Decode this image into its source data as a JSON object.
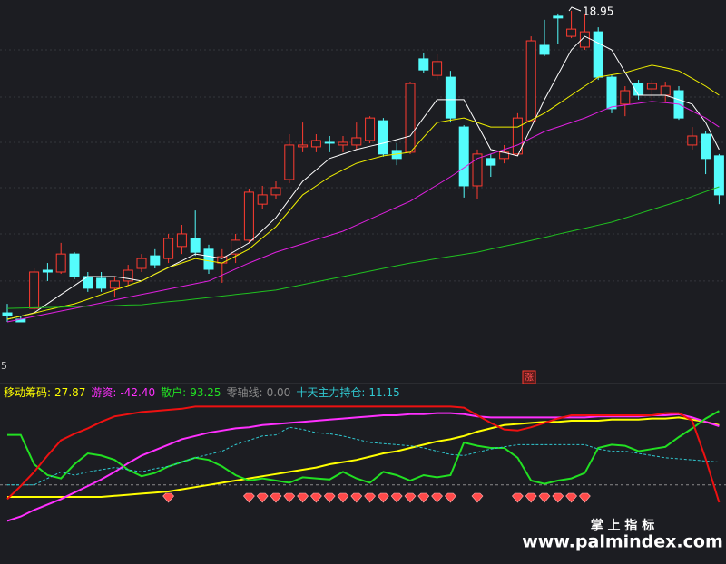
{
  "chart_data": [
    {
      "type": "candlestick",
      "open": [
        8.89,
        8.68,
        9.04,
        10.31,
        10.25,
        10.85,
        10.1,
        10.04,
        9.71,
        9.95,
        10.37,
        10.79,
        10.7,
        11.1,
        11.37,
        11.01,
        10.55,
        10.85,
        11.31,
        12.51,
        12.82,
        13.33,
        14.42,
        14.42,
        14.57,
        14.48,
        14.48,
        14.63,
        15.29,
        14.3,
        14.24,
        17.35,
        16.8,
        16.74,
        15.08,
        13.12,
        14.03,
        14.03,
        14.18,
        15.29,
        17.8,
        18.77,
        18.1,
        17.74,
        18.25,
        16.74,
        15.84,
        16.53,
        16.35,
        16.14,
        16.29,
        14.48,
        14.84,
        14.12
      ],
      "high": [
        9.19,
        8.8,
        10.37,
        10.55,
        11.22,
        10.91,
        10.25,
        10.25,
        10.1,
        10.49,
        10.85,
        11.01,
        11.52,
        11.82,
        12.3,
        11.16,
        11.01,
        11.52,
        13.03,
        13.12,
        13.27,
        14.84,
        15.23,
        14.84,
        14.78,
        14.78,
        15.23,
        15.44,
        15.38,
        14.54,
        16.59,
        17.56,
        17.5,
        16.95,
        15.14,
        14.33,
        14.18,
        14.48,
        15.54,
        18.1,
        18.65,
        18.86,
        18.95,
        18.86,
        18.4,
        16.8,
        16.44,
        16.65,
        16.65,
        16.59,
        16.44,
        15.08,
        14.93,
        14.18
      ],
      "low": [
        8.59,
        8.59,
        8.89,
        9.95,
        10.19,
        10.01,
        9.59,
        9.59,
        9.4,
        9.8,
        10.25,
        10.37,
        10.55,
        10.85,
        10.79,
        10.19,
        9.89,
        10.55,
        11.22,
        12.36,
        12.67,
        13.21,
        14.24,
        14.24,
        14.24,
        14.24,
        14.33,
        14.54,
        14.09,
        13.81,
        14.18,
        16.89,
        16.65,
        15.23,
        12.73,
        12.67,
        13.42,
        13.87,
        14.12,
        15.29,
        17.44,
        17.86,
        18.04,
        17.65,
        16.65,
        15.54,
        15.44,
        15.99,
        15.99,
        15.93,
        15.32,
        14.33,
        13.51,
        12.51
      ],
      "close": [
        8.8,
        8.59,
        10.25,
        10.25,
        10.85,
        10.1,
        9.71,
        9.71,
        9.95,
        10.31,
        10.7,
        10.49,
        11.37,
        11.52,
        10.91,
        10.34,
        10.76,
        11.31,
        12.91,
        12.82,
        13.06,
        14.48,
        14.48,
        14.63,
        14.54,
        14.57,
        14.72,
        15.38,
        14.18,
        14.03,
        16.53,
        16.98,
        17.26,
        15.38,
        13.12,
        14.18,
        13.81,
        14.24,
        15.38,
        17.95,
        17.5,
        18.71,
        18.34,
        18.25,
        16.74,
        15.69,
        16.29,
        16.14,
        16.53,
        16.44,
        15.38,
        14.78,
        14.03,
        12.82
      ],
      "up_color": "#ff3b30",
      "down_color": "#54fcfc",
      "ylim": [
        7.23,
        19.31
      ],
      "ygrid": [
        17.65,
        16.08,
        14.57,
        13.06,
        11.52,
        9.95
      ],
      "series": [
        {
          "color": "#ffffff",
          "values": [
            8.68,
            8.78,
            8.89,
            9.2,
            9.5,
            9.8,
            10.1,
            10.1,
            10.1,
            10.03,
            9.95,
            10.18,
            10.4,
            10.62,
            10.85,
            10.78,
            10.7,
            10.96,
            11.22,
            11.64,
            12.06,
            12.67,
            13.27,
            13.65,
            14.03,
            14.18,
            14.33,
            14.44,
            14.54,
            14.66,
            14.78,
            15.39,
            15.99,
            15.99,
            15.99,
            15.16,
            14.33,
            14.23,
            14.12,
            15.06,
            15.99,
            16.82,
            17.65,
            18.1,
            17.88,
            17.65,
            16.9,
            16.14,
            16.14,
            16.14,
            15.99,
            15.84,
            15.23,
            14.33
          ]
        },
        {
          "color": "#f0f000",
          "values": [
            8.68,
            8.78,
            8.88,
            8.99,
            9.09,
            9.19,
            9.34,
            9.5,
            9.65,
            9.8,
            9.95,
            10.18,
            10.4,
            10.55,
            10.7,
            10.62,
            10.55,
            10.78,
            11.01,
            11.39,
            11.76,
            12.29,
            12.82,
            13.12,
            13.42,
            13.65,
            13.87,
            14.0,
            14.12,
            14.18,
            14.24,
            14.74,
            15.23,
            15.31,
            15.38,
            15.23,
            15.08,
            15.08,
            15.08,
            15.31,
            15.54,
            15.84,
            16.14,
            16.44,
            16.74,
            16.82,
            16.89,
            17.02,
            17.14,
            17.05,
            16.95,
            16.7,
            16.44,
            16.14
          ]
        },
        {
          "color": "#e020e0",
          "values": [
            8.59,
            8.68,
            8.77,
            8.86,
            8.95,
            9.04,
            9.13,
            9.22,
            9.32,
            9.41,
            9.5,
            9.59,
            9.68,
            9.77,
            9.86,
            9.95,
            10.15,
            10.35,
            10.55,
            10.73,
            10.91,
            11.05,
            11.19,
            11.33,
            11.47,
            11.61,
            11.81,
            12.01,
            12.21,
            12.41,
            12.61,
            12.88,
            13.15,
            13.42,
            13.72,
            14.03,
            14.18,
            14.33,
            14.48,
            14.71,
            14.93,
            15.08,
            15.23,
            15.38,
            15.57,
            15.75,
            15.81,
            15.87,
            15.93,
            15.89,
            15.84,
            15.61,
            15.38,
            15.08
          ]
        },
        {
          "color": "#20c020",
          "values": [
            9.04,
            9.05,
            9.06,
            9.07,
            9.08,
            9.1,
            9.11,
            9.12,
            9.13,
            9.15,
            9.16,
            9.21,
            9.26,
            9.3,
            9.35,
            9.4,
            9.45,
            9.5,
            9.55,
            9.6,
            9.65,
            9.74,
            9.83,
            9.92,
            10.01,
            10.1,
            10.19,
            10.28,
            10.37,
            10.46,
            10.55,
            10.62,
            10.7,
            10.77,
            10.84,
            10.91,
            11.01,
            11.11,
            11.2,
            11.3,
            11.4,
            11.51,
            11.61,
            11.71,
            11.81,
            11.91,
            12.05,
            12.19,
            12.33,
            12.47,
            12.61,
            12.77,
            12.93,
            13.09
          ]
        }
      ],
      "annotation": "18.95",
      "corner_label": "5",
      "badge": "涨"
    },
    {
      "type": "line",
      "ylim": [
        -20,
        100
      ],
      "series": [
        {
          "name": "移动筹码:",
          "legend_value": "27.87",
          "color": "#ffff00",
          "values": [
            10,
            10,
            10,
            10,
            10,
            10,
            10,
            10,
            11,
            12,
            13,
            14,
            15,
            17,
            19,
            21,
            23,
            25,
            27,
            29,
            31,
            33,
            35,
            37,
            40,
            42,
            44,
            47,
            50,
            52,
            55,
            58,
            61,
            63,
            66,
            70,
            73,
            76,
            77,
            78,
            79,
            79,
            80,
            80,
            80,
            81,
            81,
            81,
            82,
            82,
            83,
            81,
            79,
            76
          ]
        },
        {
          "name": "游资:",
          "legend_value": "-42.40",
          "color": "#ff30ff",
          "values": [
            -12,
            -8,
            -2,
            3,
            8,
            14,
            20,
            26,
            33,
            41,
            48,
            53,
            58,
            63,
            66,
            69,
            71,
            73,
            74,
            76,
            77,
            78,
            79,
            80,
            81,
            82,
            83,
            84,
            85,
            85,
            86,
            86,
            87,
            87,
            86,
            84,
            83,
            83,
            83,
            83,
            83,
            83,
            83,
            83,
            84,
            84,
            84,
            84,
            85,
            85,
            86,
            83,
            79,
            75
          ]
        },
        {
          "name": "散户:",
          "legend_value": "93.25",
          "color": "#22e022",
          "values": [
            67,
            67,
            40,
            30,
            27,
            40,
            50,
            48,
            44,
            35,
            29,
            32,
            38,
            42,
            46,
            44,
            38,
            30,
            25,
            27,
            25,
            23,
            28,
            27,
            26,
            33,
            27,
            23,
            33,
            30,
            25,
            30,
            28,
            30,
            60,
            57,
            55,
            55,
            46,
            25,
            22,
            25,
            27,
            32,
            55,
            58,
            57,
            52,
            54,
            56,
            65,
            73,
            82,
            89
          ]
        },
        {
          "name": "十天主力持仓:",
          "legend_value": "11.15",
          "color": "#30c8d0",
          "dashed": true,
          "values": [
            21,
            21,
            21,
            27,
            33,
            30,
            33,
            35,
            37,
            35,
            33,
            36,
            38,
            42,
            46,
            49,
            52,
            58,
            62,
            66,
            67,
            74,
            72,
            69,
            68,
            66,
            63,
            60,
            59,
            58,
            57,
            55,
            52,
            49,
            48,
            51,
            54,
            56,
            58,
            58,
            58,
            58,
            58,
            58,
            54,
            52,
            52,
            50,
            48,
            46,
            45,
            44,
            43,
            42
          ]
        },
        {
          "color": "#ee1111",
          "values": [
            8,
            20,
            33,
            48,
            62,
            68,
            73,
            79,
            84,
            86,
            88,
            89,
            90,
            91,
            93,
            93,
            93,
            93,
            93,
            93,
            93,
            93,
            93,
            93,
            93,
            93,
            93,
            93,
            93,
            93,
            93,
            93,
            93,
            93,
            92,
            85,
            78,
            72,
            71,
            74,
            78,
            82,
            85,
            85,
            85,
            85,
            85,
            85,
            85,
            87,
            87,
            80,
            45,
            5
          ]
        }
      ],
      "zero_line": {
        "name": "零轴线:",
        "legend_value": "0.00",
        "color": "#8a8a8a",
        "value": 21
      },
      "signal_bars": [
        12,
        18,
        19,
        20,
        21,
        22,
        23,
        24,
        25,
        26,
        27,
        28,
        29,
        30,
        31,
        32,
        33,
        35,
        38,
        39,
        40,
        41,
        42,
        43
      ],
      "signal_color": "#ff4a4a"
    }
  ],
  "watermark": {
    "title": "掌 上 指 标",
    "url": "www.palmindex.com"
  }
}
